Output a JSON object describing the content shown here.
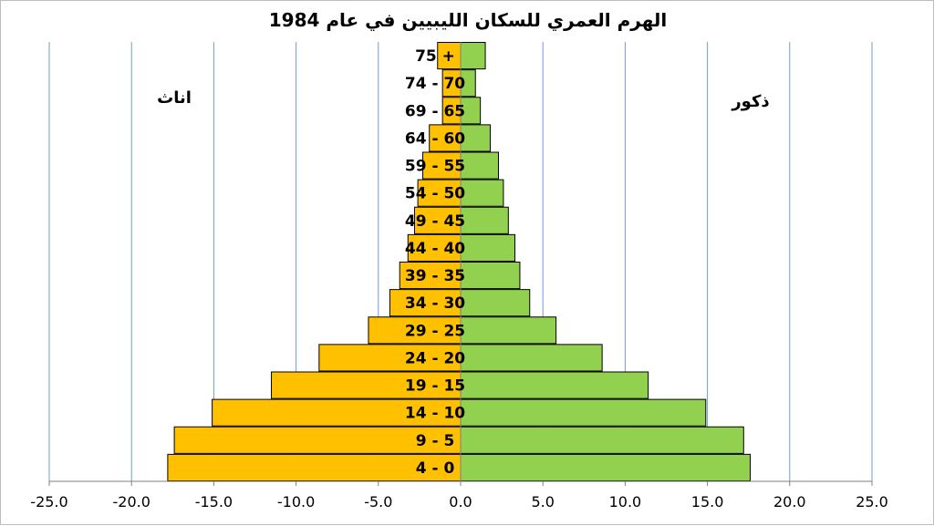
{
  "chart_data": {
    "type": "bar",
    "orientation": "horizontal",
    "title": "الهرم العمري للسكان الليبيين في عام 1984",
    "categories": [
      "4 - 0",
      "9 - 5",
      "14 - 10",
      "19 - 15",
      "24 - 20",
      "29 - 25",
      "34 - 30",
      "39 - 35",
      "44 - 40",
      "49 - 45",
      "54 - 50",
      "59 - 55",
      "64 - 60",
      "69 - 65",
      "74 - 70",
      "75 +"
    ],
    "series": [
      {
        "name": "اناث",
        "color": "#FFC000",
        "values": [
          -17.8,
          -17.4,
          -15.1,
          -11.5,
          -8.6,
          -5.6,
          -4.3,
          -3.7,
          -3.2,
          -2.8,
          -2.6,
          -2.3,
          -1.9,
          -1.1,
          -1.1,
          -1.4
        ]
      },
      {
        "name": "ذكور",
        "color": "#92D050",
        "values": [
          17.6,
          17.2,
          14.9,
          11.4,
          8.6,
          5.8,
          4.2,
          3.6,
          3.3,
          2.9,
          2.6,
          2.3,
          1.8,
          1.2,
          0.9,
          1.5
        ]
      }
    ],
    "xlim": [
      -25,
      25
    ],
    "xticks": [
      "-25.0",
      "-20.0",
      "-15.0",
      "-10.0",
      "-5.0",
      "0.0",
      "5.0",
      "10.0",
      "15.0",
      "20.0",
      "25.0"
    ],
    "xtick_values": [
      -25,
      -20,
      -15,
      -10,
      -5,
      0,
      5,
      10,
      15,
      20,
      25
    ],
    "grid": "vertical",
    "grid_color": "#6F9BD1",
    "bar_edge_color": "#000000",
    "female_label": "اناث",
    "male_label": "ذكور"
  }
}
